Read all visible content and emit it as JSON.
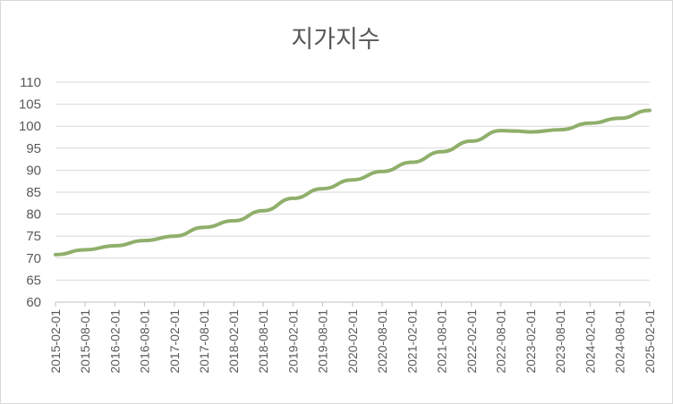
{
  "chart_data": {
    "type": "line",
    "title": "지가지수",
    "xlabel": "",
    "ylabel": "",
    "ylim": [
      60,
      110
    ],
    "yticks": [
      "110",
      "105",
      "100",
      "95",
      "90",
      "85",
      "80",
      "75",
      "70",
      "65",
      "60"
    ],
    "xticks": [
      "2015-02-01",
      "2015-08-01",
      "2016-02-01",
      "2016-08-01",
      "2017-02-01",
      "2017-08-01",
      "2018-02-01",
      "2018-08-01",
      "2019-02-01",
      "2019-08-01",
      "2020-02-01",
      "2020-08-01",
      "2021-02-01",
      "2021-08-01",
      "2022-02-01",
      "2022-08-01",
      "2023-02-01",
      "2023-08-01",
      "2024-02-01",
      "2024-08-01",
      "2025-02-01"
    ],
    "grid": true,
    "legend": "none",
    "line_color": "#8faf6b",
    "series": [
      {
        "x": [
          "2015-02-01",
          "2015-08-01",
          "2016-02-01",
          "2016-08-01",
          "2017-02-01",
          "2017-08-01",
          "2018-02-01",
          "2018-08-01",
          "2019-02-01",
          "2019-08-01",
          "2020-02-01",
          "2020-08-01",
          "2021-02-01",
          "2021-08-01",
          "2022-02-01",
          "2022-08-01",
          "2022-11-01",
          "2023-02-01",
          "2023-08-01",
          "2024-02-01",
          "2024-08-01",
          "2025-02-01"
        ],
        "values": [
          70.8,
          71.9,
          72.8,
          74.0,
          75.0,
          77.0,
          78.5,
          80.8,
          83.6,
          85.8,
          87.8,
          89.7,
          91.8,
          94.2,
          96.6,
          99.0,
          98.9,
          98.7,
          99.2,
          100.7,
          101.8,
          103.6
        ]
      }
    ]
  }
}
